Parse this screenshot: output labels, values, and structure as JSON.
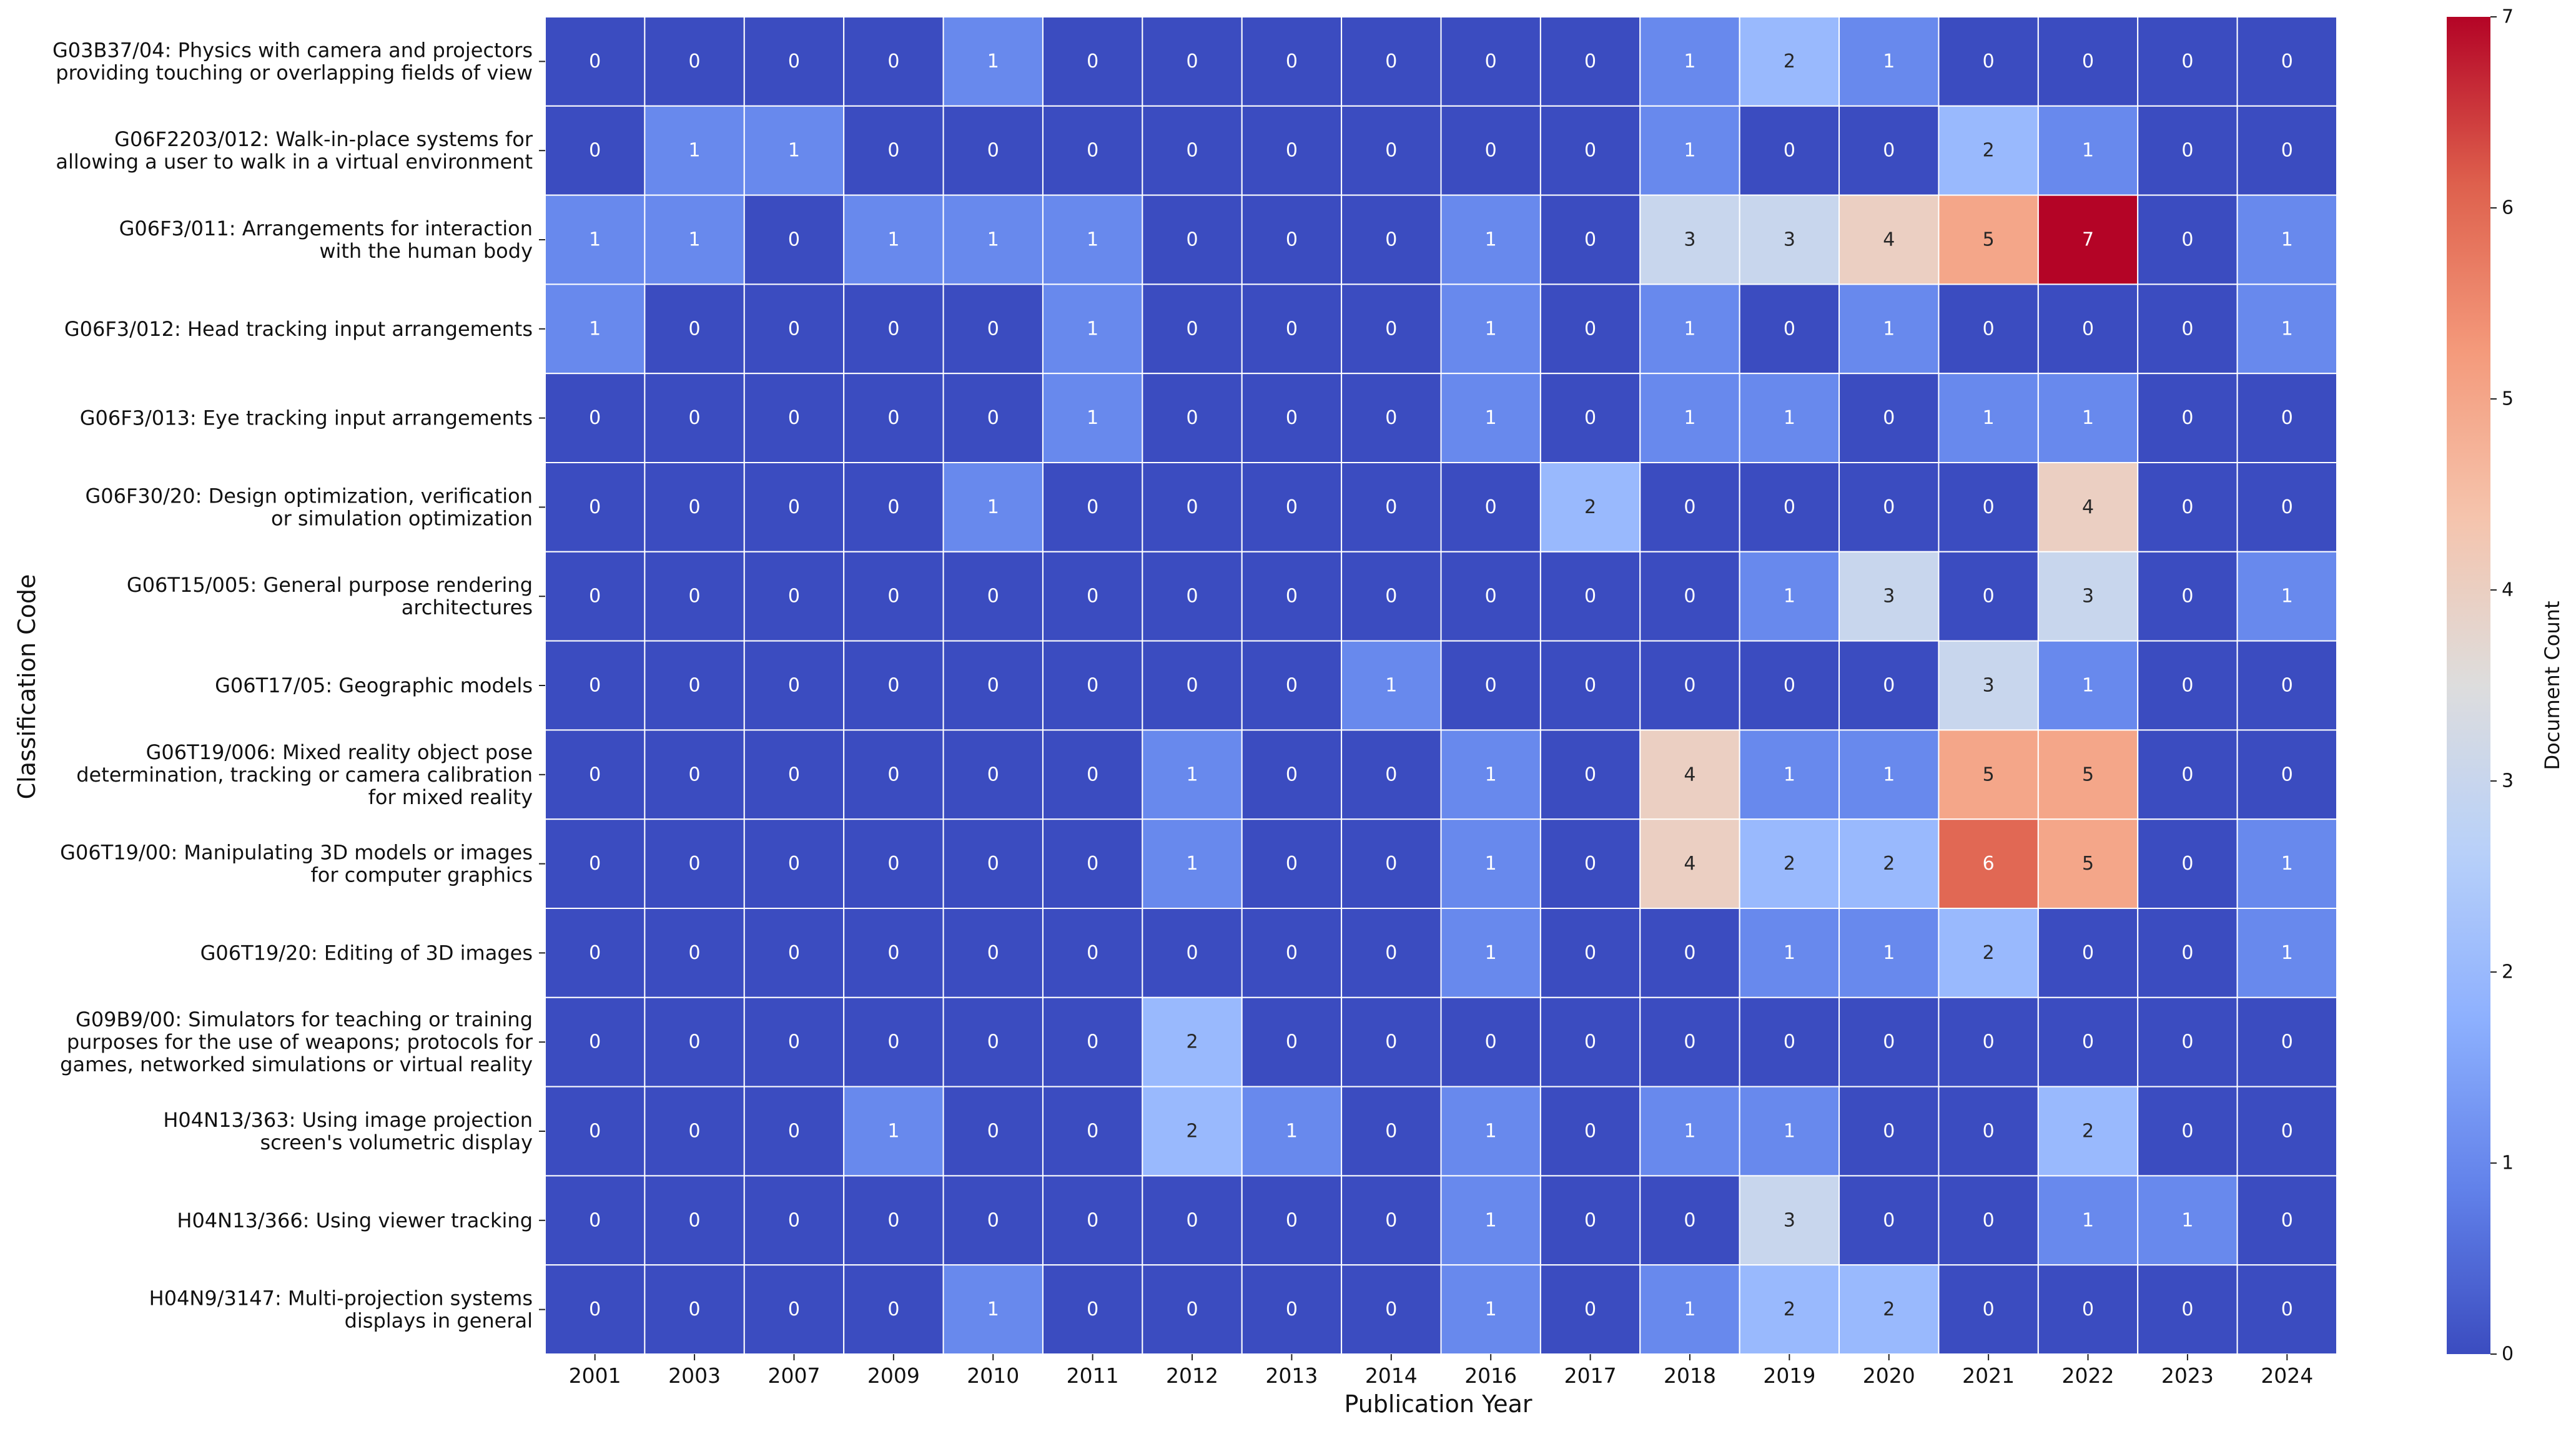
{
  "chart_data": {
    "type": "heatmap",
    "title": "",
    "xlabel": "Publication Year",
    "ylabel": "Classification Code",
    "colorbar_label": "Document Count",
    "colormap": "coolwarm",
    "vmin": 0,
    "vmax": 7,
    "colorbar_ticks": [
      0,
      1,
      2,
      3,
      4,
      5,
      6,
      7
    ],
    "x_categories": [
      "2001",
      "2003",
      "2007",
      "2009",
      "2010",
      "2011",
      "2012",
      "2013",
      "2014",
      "2016",
      "2017",
      "2018",
      "2019",
      "2020",
      "2021",
      "2022",
      "2023",
      "2024"
    ],
    "y_categories": [
      [
        "G03B37/04: Physics with camera and projectors",
        "providing touching or overlapping fields of view"
      ],
      [
        "G06F2203/012: Walk-in-place systems for",
        "allowing a user to walk in a virtual environment"
      ],
      [
        "G06F3/011: Arrangements for interaction",
        "with the human body"
      ],
      [
        "G06F3/012: Head tracking input arrangements"
      ],
      [
        "G06F3/013: Eye tracking input arrangements"
      ],
      [
        "G06F30/20: Design optimization, verification",
        "or simulation optimization"
      ],
      [
        "G06T15/005: General purpose rendering",
        "architectures"
      ],
      [
        "G06T17/05: Geographic models"
      ],
      [
        "G06T19/006: Mixed reality object pose",
        "determination, tracking or camera calibration",
        "for mixed reality"
      ],
      [
        "G06T19/00: Manipulating 3D models or images",
        "for computer graphics"
      ],
      [
        "G06T19/20: Editing of 3D images"
      ],
      [
        "G09B9/00: Simulators for teaching or training",
        "purposes for the use of weapons; protocols for",
        "games, networked simulations or virtual reality"
      ],
      [
        "H04N13/363: Using image projection",
        "screen's volumetric display"
      ],
      [
        "H04N13/366: Using viewer tracking"
      ],
      [
        "H04N9/3147: Multi-projection systems",
        "displays in general"
      ]
    ],
    "values": [
      [
        0,
        0,
        0,
        0,
        1,
        0,
        0,
        0,
        0,
        0,
        0,
        1,
        2,
        1,
        0,
        0,
        0,
        0
      ],
      [
        0,
        1,
        1,
        0,
        0,
        0,
        0,
        0,
        0,
        0,
        0,
        1,
        0,
        0,
        2,
        1,
        0,
        0
      ],
      [
        1,
        1,
        0,
        1,
        1,
        1,
        0,
        0,
        0,
        1,
        0,
        3,
        3,
        4,
        5,
        7,
        0,
        1
      ],
      [
        1,
        0,
        0,
        0,
        0,
        1,
        0,
        0,
        0,
        1,
        0,
        1,
        0,
        1,
        0,
        0,
        0,
        1
      ],
      [
        0,
        0,
        0,
        0,
        0,
        1,
        0,
        0,
        0,
        1,
        0,
        1,
        1,
        0,
        1,
        1,
        0,
        0
      ],
      [
        0,
        0,
        0,
        0,
        1,
        0,
        0,
        0,
        0,
        0,
        2,
        0,
        0,
        0,
        0,
        4,
        0,
        0
      ],
      [
        0,
        0,
        0,
        0,
        0,
        0,
        0,
        0,
        0,
        0,
        0,
        0,
        1,
        3,
        0,
        3,
        0,
        1
      ],
      [
        0,
        0,
        0,
        0,
        0,
        0,
        0,
        0,
        1,
        0,
        0,
        0,
        0,
        0,
        3,
        1,
        0,
        0
      ],
      [
        0,
        0,
        0,
        0,
        0,
        0,
        1,
        0,
        0,
        1,
        0,
        4,
        1,
        1,
        5,
        5,
        0,
        0
      ],
      [
        0,
        0,
        0,
        0,
        0,
        0,
        1,
        0,
        0,
        1,
        0,
        4,
        2,
        2,
        6,
        5,
        0,
        1
      ],
      [
        0,
        0,
        0,
        0,
        0,
        0,
        0,
        0,
        0,
        1,
        0,
        0,
        1,
        1,
        2,
        0,
        0,
        1
      ],
      [
        0,
        0,
        0,
        0,
        0,
        0,
        2,
        0,
        0,
        0,
        0,
        0,
        0,
        0,
        0,
        0,
        0,
        0
      ],
      [
        0,
        0,
        0,
        1,
        0,
        0,
        2,
        1,
        0,
        1,
        0,
        1,
        1,
        0,
        0,
        2,
        0,
        0
      ],
      [
        0,
        0,
        0,
        0,
        0,
        0,
        0,
        0,
        0,
        1,
        0,
        0,
        3,
        0,
        0,
        1,
        1,
        0
      ],
      [
        0,
        0,
        0,
        0,
        1,
        0,
        0,
        0,
        0,
        1,
        0,
        1,
        2,
        2,
        0,
        0,
        0,
        0
      ]
    ],
    "cell_labels": true,
    "grid": true
  }
}
